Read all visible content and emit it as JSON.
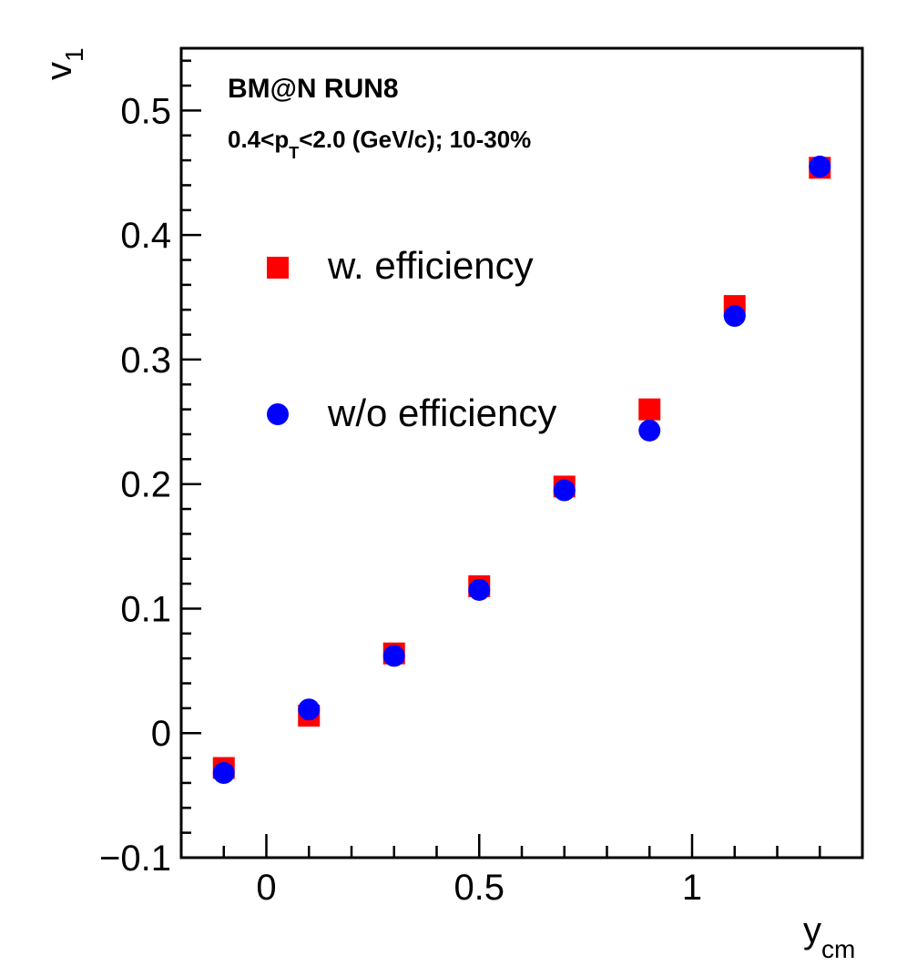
{
  "chart_data": {
    "type": "scatter",
    "xlabel": {
      "main": "y",
      "sub": "cm"
    },
    "ylabel": {
      "main": "v",
      "sub": "1"
    },
    "xlim": [
      -0.2,
      1.4
    ],
    "ylim": [
      -0.1,
      0.55
    ],
    "grid": false,
    "legend_position": "left",
    "x_ticks": [
      {
        "value": 0,
        "label": "0"
      },
      {
        "value": 0.5,
        "label": "0.5"
      },
      {
        "value": 1,
        "label": "1"
      }
    ],
    "y_ticks": [
      {
        "value": -0.1,
        "label": "−0.1"
      },
      {
        "value": 0,
        "label": "0"
      },
      {
        "value": 0.1,
        "label": "0.1"
      },
      {
        "value": 0.2,
        "label": "0.2"
      },
      {
        "value": 0.3,
        "label": "0.3"
      },
      {
        "value": 0.4,
        "label": "0.4"
      },
      {
        "value": 0.5,
        "label": "0.5"
      }
    ],
    "annotations": {
      "experiment": "BM@N RUN8",
      "cuts": {
        "pre": "0.4<p",
        "sub": "T",
        "post": "<2.0 (GeV/c); 10-30%"
      }
    },
    "series": [
      {
        "name": "w. efficiency",
        "marker": "square",
        "color": "#ff0000",
        "x": [
          -0.1,
          0.1,
          0.3,
          0.5,
          0.7,
          0.9,
          1.1,
          1.3
        ],
        "y": [
          -0.028,
          0.014,
          0.064,
          0.118,
          0.198,
          0.26,
          0.343,
          0.454
        ]
      },
      {
        "name": "w/o efficiency",
        "marker": "circle",
        "color": "#0000ff",
        "x": [
          -0.1,
          0.1,
          0.3,
          0.5,
          0.7,
          0.9,
          1.1,
          1.3
        ],
        "y": [
          -0.032,
          0.019,
          0.062,
          0.115,
          0.195,
          0.243,
          0.335,
          0.455
        ]
      }
    ]
  }
}
